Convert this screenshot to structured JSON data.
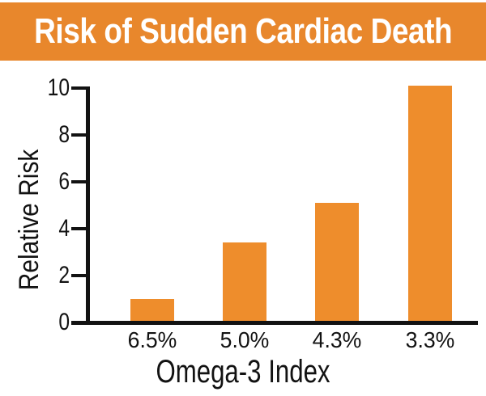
{
  "colors": {
    "banner": "#E8872C",
    "bar": "#EE8D2C",
    "title_text": "#FFFFFF",
    "axis": "#121212"
  },
  "chart_data": {
    "type": "bar",
    "title": "Risk of Sudden Cardiac Death",
    "categories": [
      "6.5%",
      "5.0%",
      "4.3%",
      "3.3%"
    ],
    "values": [
      1.0,
      3.4,
      5.1,
      10.1
    ],
    "xlabel": "Omega-3 Index",
    "ylabel": "Relative Risk",
    "ylim": [
      0,
      10
    ],
    "yticks": [
      0,
      2,
      4,
      6,
      8,
      10
    ],
    "grid": false,
    "legend": "none"
  }
}
